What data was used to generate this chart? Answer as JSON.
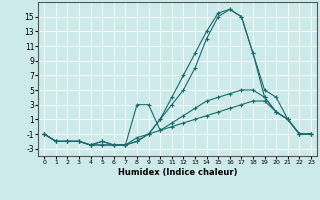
{
  "xlabel": "Humidex (Indice chaleur)",
  "background_color": "#cceaea",
  "grid_color": "#ffffff",
  "line_color": "#1a6b6b",
  "xlim": [
    -0.5,
    23.5
  ],
  "ylim": [
    -4,
    17
  ],
  "xticks": [
    0,
    1,
    2,
    3,
    4,
    5,
    6,
    7,
    8,
    9,
    10,
    11,
    12,
    13,
    14,
    15,
    16,
    17,
    18,
    19,
    20,
    21,
    22,
    23
  ],
  "yticks": [
    -3,
    -1,
    1,
    3,
    5,
    7,
    9,
    11,
    13,
    15
  ],
  "curves": [
    {
      "x": [
        0,
        1,
        2,
        3,
        4,
        5,
        6,
        7,
        8,
        9,
        10,
        11,
        12,
        13,
        14,
        15,
        16,
        17,
        18,
        19,
        20,
        21,
        22,
        23
      ],
      "y": [
        -1,
        -2,
        -2,
        -2,
        -2.5,
        -2,
        -2.5,
        -2.5,
        -2,
        -1,
        1,
        4,
        7,
        10,
        13,
        15.5,
        16,
        15,
        10,
        5,
        4,
        1,
        -1,
        -1
      ]
    },
    {
      "x": [
        0,
        1,
        2,
        3,
        4,
        5,
        6,
        7,
        8,
        9,
        10,
        11,
        12,
        13,
        14,
        15,
        16,
        17,
        18,
        19,
        20,
        21,
        22,
        23
      ],
      "y": [
        -1,
        -2,
        -2,
        -2,
        -2.5,
        -2,
        -2.5,
        -2.5,
        -2,
        -1,
        1,
        3,
        5,
        8,
        12,
        15,
        16,
        15,
        10,
        4,
        2,
        1,
        -1,
        -1
      ]
    },
    {
      "x": [
        0,
        1,
        2,
        3,
        4,
        5,
        6,
        7,
        8,
        9,
        10,
        11,
        12,
        13,
        14,
        15,
        16,
        17,
        18,
        19,
        20,
        21,
        22,
        23
      ],
      "y": [
        -1,
        -2,
        -2,
        -2,
        -2.5,
        -2.5,
        -2.5,
        -2.5,
        3,
        3,
        -0.5,
        0.5,
        1.5,
        2.5,
        3.5,
        4,
        4.5,
        5,
        5,
        4,
        2,
        1,
        -1,
        -1
      ]
    },
    {
      "x": [
        0,
        1,
        2,
        3,
        4,
        5,
        6,
        7,
        8,
        9,
        10,
        11,
        12,
        13,
        14,
        15,
        16,
        17,
        18,
        19,
        20,
        21,
        22,
        23
      ],
      "y": [
        -1,
        -2,
        -2,
        -2,
        -2.5,
        -2.5,
        -2.5,
        -2.5,
        -1.5,
        -1,
        -0.5,
        0,
        0.5,
        1,
        1.5,
        2,
        2.5,
        3,
        3.5,
        3.5,
        2,
        1,
        -1,
        -1
      ]
    }
  ]
}
